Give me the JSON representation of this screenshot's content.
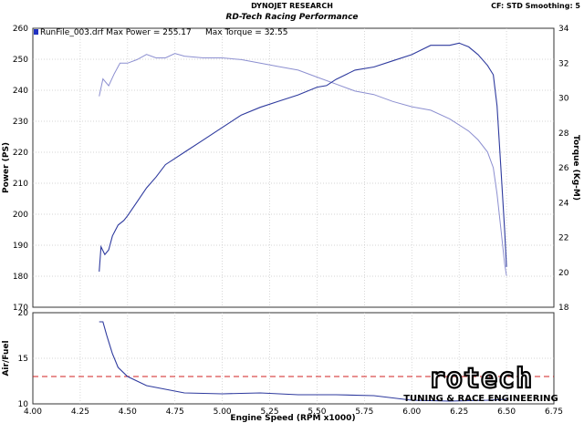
{
  "header": {
    "title": "DYNOJET RESEARCH",
    "subtitle": "RD-Tech Racing Performance",
    "right_info": "CF: STD  Smoothing: 5"
  },
  "legend": {
    "run_label": "RunFile_003.drf Max Power = 255.17",
    "torque_label": "Max Torque = 32.55"
  },
  "logo": {
    "brand": "rotech",
    "tagline": "TUNING & RACE ENGINEERING"
  },
  "colors": {
    "power": "#2e3a9e",
    "torque": "#8c8fd0",
    "afr": "#2e3a9e",
    "afr_target": "#d02020",
    "legend_swatch": "#2030c0"
  },
  "chart_data": [
    {
      "type": "line",
      "title": "RD-Tech Racing Performance",
      "xlabel": "Engine Speed (RPM x1000)",
      "ylabel": "Power (PS)",
      "y2label": "Torque (Kg-M)",
      "xlim": [
        4.0,
        6.75
      ],
      "ylim": [
        170,
        260
      ],
      "y2lim": [
        18,
        34
      ],
      "x_ticks": [
        "4.00",
        "4.25",
        "4.50",
        "4.75",
        "5.00",
        "5.25",
        "5.50",
        "5.75",
        "6.00",
        "6.25",
        "6.50",
        "6.75"
      ],
      "y_ticks": [
        170,
        180,
        190,
        200,
        210,
        220,
        230,
        240,
        250,
        260
      ],
      "y2_ticks": [
        18,
        20,
        22,
        24,
        26,
        28,
        30,
        32,
        34
      ],
      "grid": true,
      "series": [
        {
          "name": "Power",
          "axis": "left",
          "x": [
            4.35,
            4.36,
            4.38,
            4.4,
            4.42,
            4.45,
            4.48,
            4.5,
            4.55,
            4.6,
            4.65,
            4.7,
            4.75,
            4.8,
            4.9,
            5.0,
            5.1,
            5.2,
            5.3,
            5.4,
            5.5,
            5.55,
            5.6,
            5.7,
            5.8,
            5.9,
            6.0,
            6.1,
            6.2,
            6.25,
            6.3,
            6.35,
            6.4,
            6.43,
            6.45,
            6.47,
            6.49,
            6.5
          ],
          "values": [
            181.5,
            189.5,
            187.0,
            188.5,
            193.0,
            196.5,
            198.0,
            199.5,
            204.0,
            208.5,
            212.0,
            216.0,
            218.0,
            220.0,
            224.0,
            228.0,
            232.0,
            234.5,
            236.5,
            238.5,
            241.0,
            241.5,
            243.5,
            246.5,
            247.5,
            249.5,
            251.5,
            254.5,
            254.5,
            255.2,
            254.0,
            251.5,
            248.0,
            245.0,
            235.0,
            215.0,
            195.0,
            183.0
          ]
        },
        {
          "name": "Torque",
          "axis": "right",
          "x": [
            4.35,
            4.37,
            4.4,
            4.43,
            4.46,
            4.5,
            4.55,
            4.6,
            4.65,
            4.7,
            4.75,
            4.8,
            4.9,
            5.0,
            5.1,
            5.2,
            5.3,
            5.4,
            5.5,
            5.6,
            5.7,
            5.8,
            5.9,
            6.0,
            6.1,
            6.2,
            6.3,
            6.35,
            6.4,
            6.43,
            6.45,
            6.47,
            6.49,
            6.5
          ],
          "values": [
            30.1,
            31.1,
            30.7,
            31.4,
            32.0,
            32.0,
            32.2,
            32.5,
            32.3,
            32.3,
            32.55,
            32.4,
            32.3,
            32.3,
            32.2,
            32.0,
            31.8,
            31.6,
            31.2,
            30.8,
            30.4,
            30.2,
            29.8,
            29.5,
            29.3,
            28.8,
            28.1,
            27.6,
            26.9,
            26.0,
            24.5,
            22.5,
            20.5,
            19.8
          ]
        }
      ]
    },
    {
      "type": "line",
      "xlabel": "Engine Speed (RPM x1000)",
      "ylabel": "Air/Fuel",
      "xlim": [
        4.0,
        6.75
      ],
      "ylim": [
        10,
        20
      ],
      "y_ticks": [
        10,
        15,
        20
      ],
      "x_ticks": [
        "4.00",
        "4.25",
        "4.50",
        "4.75",
        "5.00",
        "5.25",
        "5.50",
        "5.75",
        "6.00",
        "6.25",
        "6.50",
        "6.75"
      ],
      "grid": true,
      "reference_line": 13.0,
      "series": [
        {
          "name": "Air/Fuel",
          "x": [
            4.35,
            4.37,
            4.39,
            4.42,
            4.45,
            4.5,
            4.6,
            4.7,
            4.8,
            5.0,
            5.2,
            5.4,
            5.6,
            5.8,
            6.0,
            6.2,
            6.4,
            6.5
          ],
          "values": [
            19.0,
            19.0,
            17.5,
            15.5,
            14.0,
            13.0,
            12.0,
            11.6,
            11.2,
            11.1,
            11.2,
            11.0,
            11.0,
            10.9,
            10.4,
            10.3,
            10.4,
            10.5
          ]
        }
      ]
    }
  ]
}
